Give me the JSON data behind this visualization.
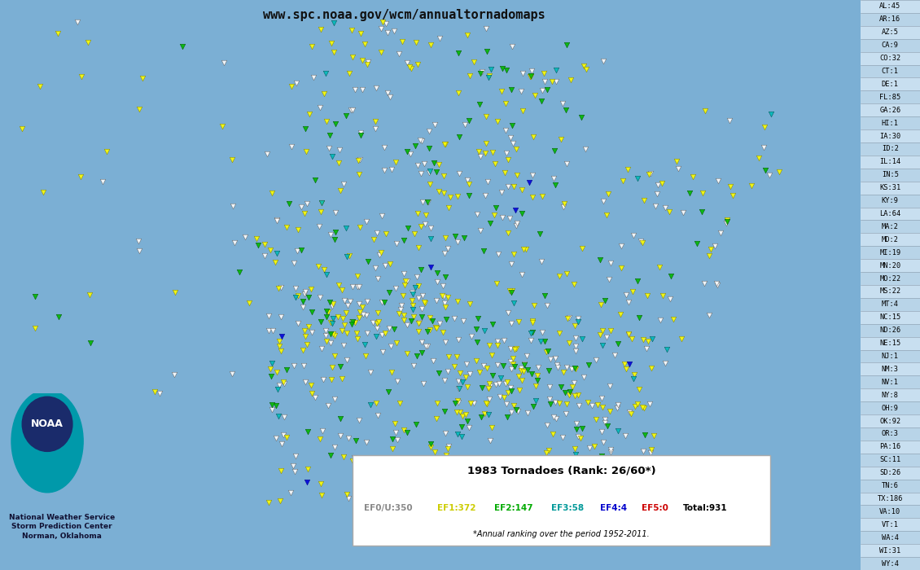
{
  "title": "www.spc.noaa.gov/wcm/annualtornadomaps",
  "map_title": "1983 Tornadoes (Rank: 26/60*)",
  "subtitle": "*Annual ranking over the period 1952-2011.",
  "legend_items": [
    {
      "label": "EF0/U:350",
      "color": "#999999"
    },
    {
      "label": "EF1:372",
      "color": "#cccc00"
    },
    {
      "label": "EF2:147",
      "color": "#00aa00"
    },
    {
      "label": "EF3:58",
      "color": "#00aaaa"
    },
    {
      "label": "EF4:4",
      "color": "#0000cc"
    },
    {
      "label": "EF5:0",
      "color": "#cc0000"
    },
    {
      "label": "Total:931",
      "color": "#000000"
    }
  ],
  "state_counts": [
    [
      "AL",
      45
    ],
    [
      "AR",
      16
    ],
    [
      "AZ",
      5
    ],
    [
      "CA",
      9
    ],
    [
      "CO",
      32
    ],
    [
      "CT",
      1
    ],
    [
      "DE",
      1
    ],
    [
      "FL",
      85
    ],
    [
      "GA",
      26
    ],
    [
      "HI",
      1
    ],
    [
      "IA",
      30
    ],
    [
      "ID",
      2
    ],
    [
      "IL",
      14
    ],
    [
      "IN",
      5
    ],
    [
      "KS",
      31
    ],
    [
      "KY",
      9
    ],
    [
      "LA",
      64
    ],
    [
      "MA",
      2
    ],
    [
      "MD",
      2
    ],
    [
      "MI",
      19
    ],
    [
      "MN",
      20
    ],
    [
      "MO",
      22
    ],
    [
      "MS",
      22
    ],
    [
      "MT",
      4
    ],
    [
      "NC",
      15
    ],
    [
      "ND",
      26
    ],
    [
      "NE",
      15
    ],
    [
      "NJ",
      1
    ],
    [
      "NM",
      3
    ],
    [
      "NV",
      1
    ],
    [
      "NY",
      8
    ],
    [
      "OH",
      9
    ],
    [
      "OK",
      92
    ],
    [
      "OR",
      3
    ],
    [
      "PA",
      16
    ],
    [
      "SC",
      11
    ],
    [
      "SD",
      26
    ],
    [
      "TN",
      6
    ],
    [
      "TX",
      186
    ],
    [
      "VA",
      10
    ],
    [
      "VT",
      1
    ],
    [
      "WA",
      4
    ],
    [
      "WI",
      31
    ],
    [
      "WY",
      4
    ]
  ],
  "ocean_color": "#7bafd4",
  "land_outside_color": "#aabbcc",
  "us_land_color": "#f0f0f0",
  "state_border_color": "#888888",
  "country_border_color": "#666666",
  "sidebar_bg": "#b8d4e8",
  "sidebar_border": "#8899aa",
  "noaa_dark_blue": "#1a2b6b",
  "noaa_teal": "#0099aa",
  "ef_colors": [
    "#dddddd",
    "#ffff00",
    "#00bb00",
    "#00bbbb",
    "#0000dd",
    "#ff0000"
  ],
  "ef_edge_colors": [
    "#888888",
    "#888800",
    "#005500",
    "#005555",
    "#000088",
    "#880000"
  ]
}
